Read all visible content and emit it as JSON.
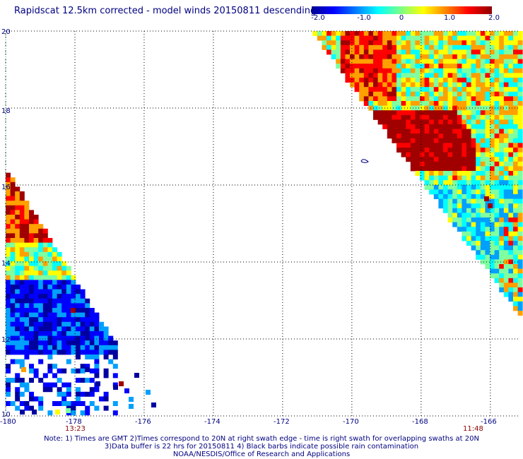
{
  "title": "Rapidscat 12.5km corrected - model winds 20150811 descending",
  "colorbar": {
    "labels": [
      "-2.0",
      "-1.0",
      "0",
      "1.0",
      "2.0"
    ],
    "min": -2.0,
    "max": 2.0
  },
  "map": {
    "lon_range": [
      -180,
      -165.2
    ],
    "lat_range": [
      10,
      20
    ],
    "x_ticks": [
      "-180",
      "-178",
      "-176",
      "-174",
      "-172",
      "-170",
      "-168",
      "-166"
    ],
    "y_ticks": [
      "20",
      "18",
      "16",
      "14",
      "12",
      "10"
    ],
    "grid": true,
    "time_labels": [
      "13:23",
      "11:48"
    ]
  },
  "notes": [
    "Note: 1) Times are GMT 2)Times correspond to 20N at right swath edge - time is right swath for overlapping swaths at 20N",
    "3)Data buffer is 22 hrs for 20150811 4) Black barbs indicate possible rain contamination",
    "NOAA/NESDIS/Office of Research and Applications"
  ],
  "colors": {
    "text": "#000080",
    "time_label": "#8b0000",
    "colorscale": [
      "#0000a0",
      "#0000ff",
      "#00a0ff",
      "#00ffff",
      "#80ffa0",
      "#ffff00",
      "#ffa000",
      "#ff0000",
      "#a00000"
    ]
  }
}
